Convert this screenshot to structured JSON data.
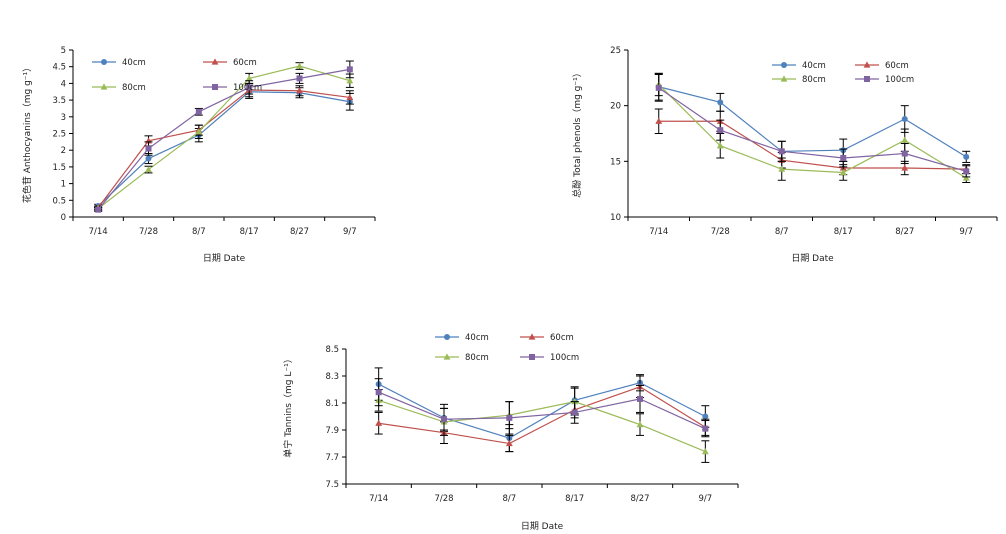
{
  "chart_data": [
    {
      "type": "line",
      "title": "",
      "xlabel": "日期 Date",
      "ylabel": "花色苷 Anthocyanins（mg g⁻¹）",
      "categories": [
        "7/14",
        "7/28",
        "8/7",
        "8/17",
        "8/27",
        "9/7"
      ],
      "ylim": [
        0,
        5
      ],
      "yticks": [
        "0",
        "0.5",
        "1",
        "1.5",
        "2",
        "2.5",
        "3",
        "3.5",
        "4",
        "4.5",
        "5"
      ],
      "legend": "top-left",
      "series": [
        {
          "name": "40cm",
          "values": [
            0.33,
            1.75,
            2.45,
            3.75,
            3.72,
            3.45
          ],
          "err": [
            0.05,
            0.15,
            0.2,
            0.2,
            0.15,
            0.25
          ],
          "color": "#4f81bd",
          "marker": "circle"
        },
        {
          "name": "60cm",
          "values": [
            0.28,
            2.28,
            2.6,
            3.8,
            3.78,
            3.58
          ],
          "err": [
            0.05,
            0.15,
            0.15,
            0.2,
            0.15,
            0.2
          ],
          "color": "#c0504d",
          "marker": "triangle"
        },
        {
          "name": "80cm",
          "values": [
            0.25,
            1.42,
            2.55,
            4.15,
            4.52,
            4.08
          ],
          "err": [
            0.05,
            0.1,
            0.2,
            0.15,
            0.1,
            0.2
          ],
          "color": "#9bbb59",
          "marker": "triangle"
        },
        {
          "name": "100cm",
          "values": [
            0.22,
            2.05,
            3.15,
            3.88,
            4.15,
            4.42
          ],
          "err": [
            0.05,
            0.2,
            0.1,
            0.2,
            0.15,
            0.25
          ],
          "color": "#8064a2",
          "marker": "square"
        }
      ]
    },
    {
      "type": "line",
      "title": "",
      "xlabel": "日期 Date",
      "ylabel": "总酚 Total phenols（mg g⁻¹）",
      "categories": [
        "7/14",
        "7/28",
        "8/7",
        "8/17",
        "8/27",
        "9/7"
      ],
      "ylim": [
        10,
        25
      ],
      "yticks": [
        "10",
        "15",
        "20",
        "25"
      ],
      "legend": "top-right",
      "series": [
        {
          "name": "40cm",
          "values": [
            21.7,
            20.3,
            15.9,
            16.0,
            18.8,
            15.4
          ],
          "err": [
            1.2,
            0.8,
            0.9,
            1.0,
            1.2,
            0.5
          ],
          "color": "#4f81bd",
          "marker": "circle"
        },
        {
          "name": "60cm",
          "values": [
            18.6,
            18.6,
            15.1,
            14.4,
            14.4,
            14.3
          ],
          "err": [
            1.1,
            0.9,
            0.7,
            0.6,
            0.6,
            0.4
          ],
          "color": "#c0504d",
          "marker": "triangle"
        },
        {
          "name": "80cm",
          "values": [
            21.9,
            16.4,
            14.3,
            14.0,
            16.9,
            13.5
          ],
          "err": [
            1.0,
            1.1,
            1.0,
            0.7,
            1.0,
            0.4
          ],
          "color": "#9bbb59",
          "marker": "triangle"
        },
        {
          "name": "100cm",
          "values": [
            21.6,
            17.8,
            15.9,
            15.3,
            15.7,
            14.1
          ],
          "err": [
            1.2,
            0.9,
            0.9,
            0.8,
            0.9,
            0.5
          ],
          "color": "#8064a2",
          "marker": "square"
        }
      ]
    },
    {
      "type": "line",
      "title": "",
      "xlabel": "日期 Date",
      "ylabel": "单宁 Tannins（mg L⁻¹）",
      "categories": [
        "7/14",
        "7/28",
        "8/7",
        "8/17",
        "8/27",
        "9/7"
      ],
      "ylim": [
        7.5,
        8.5
      ],
      "yticks": [
        "7.5",
        "7.7",
        "7.9",
        "8.1",
        "8.3",
        "8.5"
      ],
      "legend": "top-center",
      "series": [
        {
          "name": "40cm",
          "values": [
            8.24,
            7.99,
            7.84,
            8.12,
            8.25,
            8.0
          ],
          "err": [
            0.12,
            0.1,
            0.1,
            0.1,
            0.06,
            0.08
          ],
          "color": "#4f81bd",
          "marker": "circle"
        },
        {
          "name": "60cm",
          "values": [
            7.95,
            7.88,
            7.8,
            8.05,
            8.22,
            7.92
          ],
          "err": [
            0.08,
            0.08,
            0.06,
            0.06,
            0.08,
            0.06
          ],
          "color": "#c0504d",
          "marker": "triangle"
        },
        {
          "name": "80cm",
          "values": [
            8.12,
            7.96,
            8.01,
            8.11,
            7.94,
            7.74
          ],
          "err": [
            0.08,
            0.1,
            0.1,
            0.1,
            0.08,
            0.08
          ],
          "color": "#9bbb59",
          "marker": "triangle"
        },
        {
          "name": "100cm",
          "values": [
            8.18,
            7.98,
            7.99,
            8.03,
            8.13,
            7.91
          ],
          "err": [
            0.1,
            0.08,
            0.12,
            0.08,
            0.1,
            0.06
          ],
          "color": "#8064a2",
          "marker": "square"
        }
      ]
    }
  ]
}
